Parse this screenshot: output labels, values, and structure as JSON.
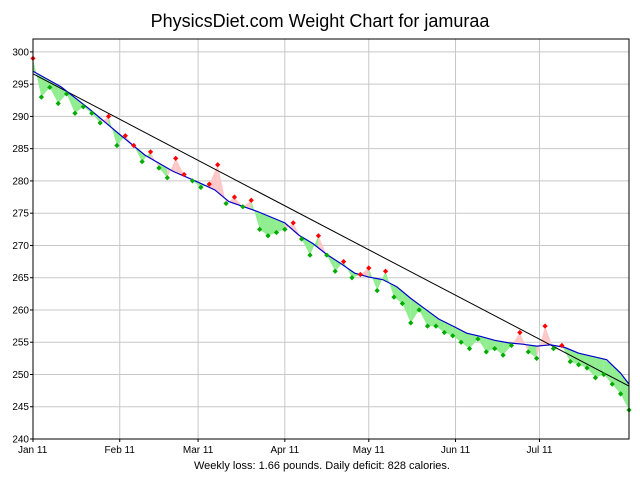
{
  "chart_data": {
    "type": "line",
    "title": "PhysicsDiet.com Weight Chart for jamuraa",
    "caption": "Weekly loss: 1.66 pounds. Daily deficit: 828 calories.",
    "xlabel": "",
    "ylabel": "",
    "x_axis": {
      "unit": "days since Jan 1, 2011",
      "xlim": [
        0,
        213
      ],
      "ticks": [
        {
          "label": "Jan 11",
          "value": 0
        },
        {
          "label": "Feb 11",
          "value": 31
        },
        {
          "label": "Mar 11",
          "value": 59
        },
        {
          "label": "Apr 11",
          "value": 90
        },
        {
          "label": "May 11",
          "value": 120
        },
        {
          "label": "Jun 11",
          "value": 151
        },
        {
          "label": "Jul 11",
          "value": 181
        }
      ]
    },
    "y_axis": {
      "ylim": [
        240,
        302
      ],
      "ticks": [
        240,
        245,
        250,
        255,
        260,
        265,
        270,
        275,
        280,
        285,
        290,
        295,
        300
      ]
    },
    "grid": true,
    "colors": {
      "trend_line": "#000000",
      "moving_average": "#0000cc",
      "below_fill": "#90ee90",
      "below_marker": "#00aa00",
      "above_fill": "#ffc8c8",
      "above_marker": "#ff0000",
      "grid": "#c8c8c8"
    },
    "series": [
      {
        "kind": "trend",
        "x": [
          0,
          213
        ],
        "y": [
          296.6,
          248.2
        ]
      },
      {
        "kind": "average",
        "x": [
          0,
          10,
          20,
          31,
          40,
          50,
          59,
          65,
          70,
          80,
          90,
          95,
          100,
          105,
          110,
          115,
          120,
          125,
          130,
          135,
          140,
          145,
          151,
          155,
          160,
          165,
          170,
          175,
          180,
          185,
          190,
          195,
          200,
          205,
          210,
          213
        ],
        "y": [
          297.0,
          294.6,
          291.2,
          287.2,
          284.0,
          281.5,
          279.8,
          278.6,
          276.8,
          275.3,
          273.5,
          271.6,
          270.3,
          268.6,
          267.2,
          265.7,
          265.1,
          264.7,
          263.6,
          261.8,
          260.2,
          258.6,
          257.3,
          256.4,
          255.9,
          255.3,
          254.9,
          254.7,
          254.4,
          254.6,
          254.2,
          253.3,
          252.8,
          252.3,
          250.2,
          248.5
        ]
      },
      {
        "kind": "weights",
        "x": [
          0,
          3,
          6,
          9,
          12,
          15,
          18,
          21,
          24,
          27,
          30,
          33,
          36,
          39,
          42,
          45,
          48,
          51,
          54,
          57,
          60,
          63,
          66,
          69,
          72,
          75,
          78,
          81,
          84,
          87,
          90,
          93,
          96,
          99,
          102,
          105,
          108,
          111,
          114,
          117,
          120,
          123,
          126,
          129,
          132,
          135,
          138,
          141,
          144,
          147,
          150,
          153,
          156,
          159,
          162,
          165,
          168,
          171,
          174,
          177,
          180,
          183,
          186,
          189,
          192,
          195,
          198,
          201,
          204,
          207,
          210,
          213
        ],
        "y": [
          299.0,
          293.0,
          294.5,
          292.0,
          293.5,
          290.5,
          291.5,
          290.5,
          289.0,
          290.0,
          285.5,
          287.0,
          285.5,
          283.0,
          284.5,
          282.0,
          280.5,
          283.5,
          281.0,
          280.0,
          279.0,
          279.5,
          282.5,
          276.5,
          277.5,
          276.0,
          277.0,
          272.5,
          271.5,
          272.0,
          272.5,
          273.5,
          271.0,
          268.5,
          271.5,
          268.5,
          266.0,
          267.5,
          265.0,
          265.5,
          266.5,
          263.0,
          266.0,
          262.0,
          261.0,
          258.0,
          260.0,
          257.5,
          257.5,
          256.5,
          256.0,
          255.0,
          254.0,
          255.5,
          253.5,
          254.0,
          253.0,
          254.5,
          256.5,
          253.5,
          252.5,
          257.5,
          254.0,
          254.5,
          252.0,
          251.5,
          251.0,
          249.5,
          250.0,
          248.5,
          247.0,
          244.5
        ]
      }
    ]
  }
}
